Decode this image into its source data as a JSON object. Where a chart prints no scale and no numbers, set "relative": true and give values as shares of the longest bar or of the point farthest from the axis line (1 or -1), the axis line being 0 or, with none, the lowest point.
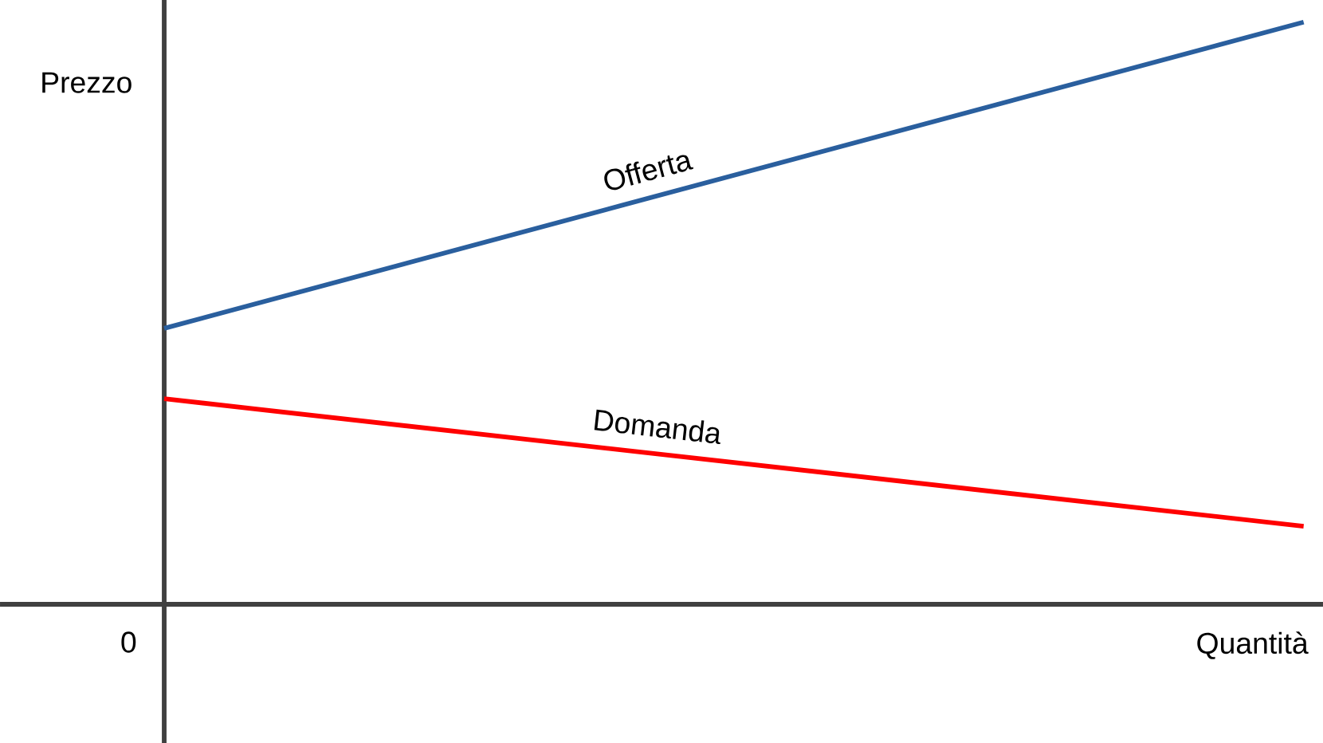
{
  "chart_data": {
    "type": "line",
    "relative": true,
    "xlabel": "Quantità",
    "ylabel": "Prezzo",
    "annotations": [
      "0"
    ],
    "categories": [
      null,
      null
    ],
    "series": [
      {
        "name": "Offerta",
        "color": "#2a5f9e",
        "values": [
          0.474,
          1
        ]
      },
      {
        "name": "Domanda",
        "color": "#ff0000",
        "values": [
          0.353,
          0.134
        ]
      }
    ]
  }
}
